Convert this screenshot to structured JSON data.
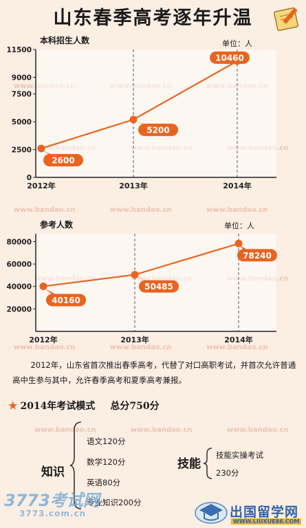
{
  "title": "山东春季高考逐年升温",
  "chart_data": [
    {
      "type": "line",
      "title": "本科招生人数",
      "unit_label": "单位：人",
      "categories": [
        "2012年",
        "2013年",
        "2014年"
      ],
      "values": [
        2600,
        5200,
        10460
      ],
      "data_labels": [
        "2600",
        "5200",
        "10460"
      ],
      "y_ticks": [
        "0",
        "2500",
        "5000",
        "7500",
        "9000",
        "11500"
      ],
      "ylim": [
        0,
        11500
      ],
      "grid": "vertical dashed at 2013 and 2014",
      "color": "#e8641f"
    },
    {
      "type": "line",
      "title": "参考人数",
      "unit_label": "单位：人",
      "categories": [
        "2012年",
        "2013年",
        "2014年"
      ],
      "values": [
        40160,
        50485,
        78240
      ],
      "data_labels": [
        "40160",
        "50485",
        "78240"
      ],
      "y_ticks": [
        "20000",
        "40000",
        "60000",
        "80000"
      ],
      "ylim": [
        0,
        87000
      ],
      "grid": "vertical dashed at 2013 and 2014",
      "color": "#e8641f"
    }
  ],
  "watermark": "www.bandao.cn",
  "paragraph": "2012年，山东省首次推出春季高考，代替了对口高职考试，并首次允许普通高中生参与其中，允许春季高考和夏季高考兼报。",
  "mode": {
    "heading": "2014年考试模式",
    "total": "总分750分"
  },
  "knowledge": {
    "label": "知识",
    "subjects": [
      "语文120分",
      "数学120分",
      "英语80分",
      "专业知识200分"
    ]
  },
  "skills": {
    "label": "技能",
    "items": [
      "技能实操考试",
      "230分"
    ]
  },
  "footer_left": {
    "brand": "3773考试网",
    "url": "3773.com.cn"
  },
  "footer_right": {
    "brand": "出国留学网",
    "url": "WWW.LIUXUE86.COM"
  }
}
